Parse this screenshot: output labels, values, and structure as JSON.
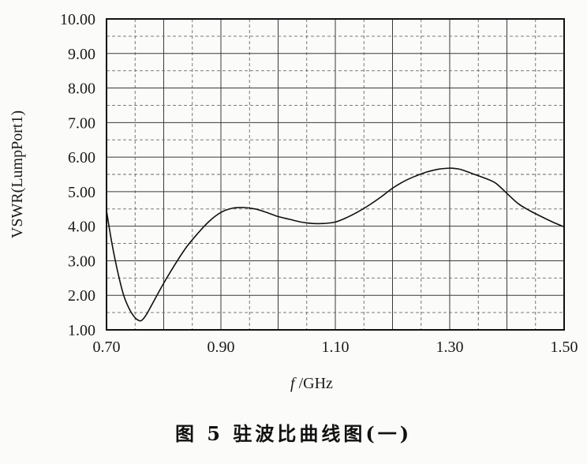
{
  "caption": "图 5   驻波比曲线图(一)",
  "chart_data": {
    "type": "line",
    "xlabel_italic": "f",
    "xlabel_unit": " /GHz",
    "ylabel": "VSWR(LumpPort1)",
    "xlim": [
      0.7,
      1.5
    ],
    "ylim": [
      1.0,
      10.0
    ],
    "x_ticks": [
      "0.70",
      "0.90",
      "1.10",
      "1.30",
      "1.50"
    ],
    "y_ticks": [
      "1.00",
      "2.00",
      "3.00",
      "4.00",
      "5.00",
      "6.00",
      "7.00",
      "8.00",
      "9.00",
      "10.00"
    ],
    "grid": true,
    "series": [
      {
        "x": [
          0.7,
          0.71,
          0.72,
          0.73,
          0.74,
          0.75,
          0.757,
          0.762,
          0.77,
          0.78,
          0.8,
          0.82,
          0.84,
          0.86,
          0.88,
          0.9,
          0.92,
          0.94,
          0.96,
          0.98,
          1.0,
          1.02,
          1.04,
          1.06,
          1.08,
          1.1,
          1.12,
          1.14,
          1.16,
          1.18,
          1.2,
          1.22,
          1.24,
          1.26,
          1.28,
          1.3,
          1.31,
          1.32,
          1.34,
          1.36,
          1.38,
          1.4,
          1.42,
          1.44,
          1.46,
          1.48,
          1.5
        ],
        "y": [
          4.45,
          3.45,
          2.65,
          2.0,
          1.6,
          1.35,
          1.27,
          1.28,
          1.45,
          1.75,
          2.35,
          2.9,
          3.4,
          3.8,
          4.15,
          4.4,
          4.52,
          4.54,
          4.5,
          4.4,
          4.28,
          4.2,
          4.12,
          4.08,
          4.08,
          4.12,
          4.25,
          4.42,
          4.62,
          4.85,
          5.1,
          5.3,
          5.45,
          5.57,
          5.65,
          5.68,
          5.67,
          5.64,
          5.52,
          5.4,
          5.25,
          4.95,
          4.65,
          4.45,
          4.28,
          4.12,
          3.98
        ]
      }
    ]
  }
}
